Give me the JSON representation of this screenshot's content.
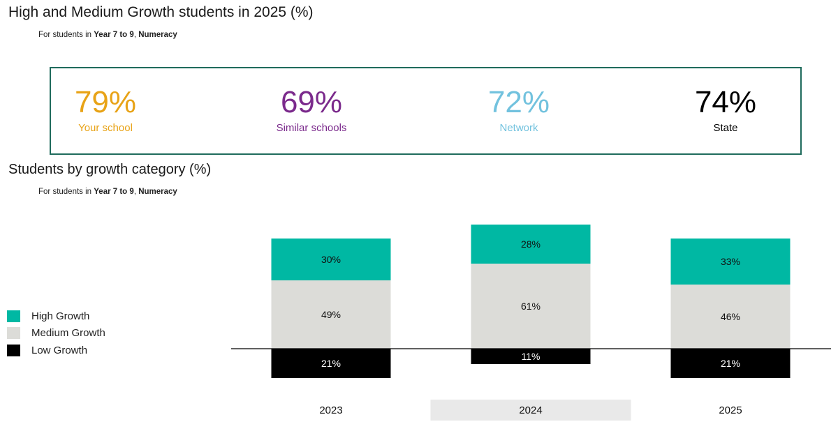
{
  "header": {
    "title": "High and Medium Growth students in 2025 (%)",
    "subtitle_prefix": "For students in ",
    "subtitle_years": "Year 7 to 9",
    "subtitle_sep": ", ",
    "subtitle_domain": "Numeracy"
  },
  "summary": [
    {
      "value": "79%",
      "label": "Your school",
      "color": "#e8a317"
    },
    {
      "value": "69%",
      "label": "Similar schools",
      "color": "#7b2a8c"
    },
    {
      "value": "72%",
      "label": "Network",
      "color": "#72c2de"
    },
    {
      "value": "74%",
      "label": "State",
      "color": "#000000"
    }
  ],
  "chart_section": {
    "title": "Students by growth category (%)",
    "subtitle_prefix": "For students in ",
    "subtitle_years": "Year 7 to 9",
    "subtitle_sep": ", ",
    "subtitle_domain": "Numeracy"
  },
  "legend": [
    {
      "name": "High Growth",
      "color": "#00b8a3"
    },
    {
      "name": "Medium Growth",
      "color": "#dcdcd8"
    },
    {
      "name": "Low Growth",
      "color": "#000000"
    }
  ],
  "chart_data": {
    "type": "bar",
    "stacked": true,
    "baseline": "zero line between Medium Growth and Low Growth; Low Growth drawn below",
    "categories": [
      "2023",
      "2024",
      "2025"
    ],
    "highlighted_category": "2024",
    "series": [
      {
        "name": "High Growth",
        "values": [
          30,
          28,
          33
        ],
        "labels": [
          "30%",
          "28%",
          "33%"
        ],
        "color": "#00b8a3"
      },
      {
        "name": "Medium Growth",
        "values": [
          49,
          61,
          46
        ],
        "labels": [
          "49%",
          "61%",
          "46%"
        ],
        "color": "#dcdcd8"
      },
      {
        "name": "Low Growth",
        "values": [
          21,
          11,
          21
        ],
        "labels": [
          "21%",
          "11%",
          "21%"
        ],
        "color": "#000000"
      }
    ],
    "legend_position": "left",
    "grid": false
  }
}
